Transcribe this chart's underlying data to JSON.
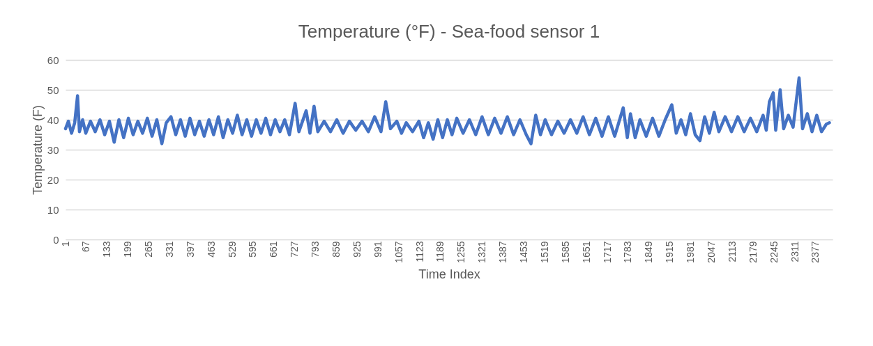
{
  "chart_data": {
    "type": "line",
    "title": "Temperature (°F) - Sea-food sensor 1",
    "xlabel": "Time Index",
    "ylabel": "Temperature (F)",
    "x": [
      1,
      10,
      20,
      30,
      39,
      45,
      55,
      65,
      80,
      95,
      110,
      125,
      140,
      155,
      170,
      185,
      200,
      215,
      230,
      245,
      260,
      275,
      290,
      306,
      320,
      335,
      350,
      365,
      380,
      395,
      410,
      425,
      440,
      455,
      470,
      485,
      500,
      515,
      530,
      545,
      560,
      575,
      590,
      605,
      620,
      635,
      650,
      665,
      680,
      695,
      710,
      728,
      740,
      763,
      775,
      788,
      800,
      820,
      840,
      860,
      880,
      900,
      920,
      940,
      960,
      980,
      1000,
      1015,
      1030,
      1050,
      1065,
      1080,
      1100,
      1120,
      1135,
      1150,
      1165,
      1180,
      1195,
      1210,
      1225,
      1240,
      1260,
      1280,
      1300,
      1320,
      1340,
      1360,
      1380,
      1400,
      1420,
      1440,
      1460,
      1475,
      1490,
      1505,
      1520,
      1540,
      1560,
      1580,
      1600,
      1620,
      1640,
      1660,
      1680,
      1700,
      1720,
      1740,
      1767,
      1780,
      1790,
      1805,
      1820,
      1840,
      1860,
      1880,
      1900,
      1921,
      1935,
      1950,
      1965,
      1980,
      1995,
      2010,
      2025,
      2040,
      2055,
      2070,
      2090,
      2110,
      2130,
      2150,
      2170,
      2190,
      2210,
      2220,
      2230,
      2242,
      2250,
      2264,
      2275,
      2290,
      2305,
      2324,
      2335,
      2350,
      2365,
      2380,
      2395,
      2410,
      2420
    ],
    "series": [
      {
        "color": "#4472c4",
        "values": [
          37,
          39.5,
          35.5,
          39,
          48,
          36,
          40,
          35.5,
          39.5,
          36,
          40,
          35,
          39.5,
          32.5,
          40,
          34,
          40.5,
          35,
          39.5,
          35.5,
          40.5,
          34.5,
          40,
          32,
          39,
          41,
          35,
          40,
          34.5,
          40.5,
          35,
          39.5,
          34.5,
          40,
          35,
          41,
          34,
          40,
          35.5,
          41.5,
          35,
          40,
          34.5,
          40,
          35.5,
          40.5,
          35,
          40,
          36,
          40,
          35,
          45.5,
          36,
          43,
          35.5,
          44.5,
          36,
          39.5,
          36,
          40,
          35.5,
          39.5,
          36.5,
          39.5,
          36,
          41,
          36,
          46,
          37,
          39.5,
          35.5,
          39,
          36,
          39.5,
          34,
          39,
          33.5,
          40,
          34,
          40,
          35,
          40.5,
          35.5,
          40,
          35,
          41,
          35,
          40.5,
          35.5,
          41,
          35,
          40,
          35,
          32,
          41.5,
          35,
          40,
          35,
          39.5,
          35.5,
          40,
          35.5,
          41,
          35,
          40.5,
          34.5,
          41,
          34.5,
          44,
          34,
          42,
          34,
          40,
          34.5,
          40.5,
          34.5,
          40,
          45,
          35.5,
          40,
          35,
          42,
          35,
          33,
          41,
          35.5,
          42.5,
          36,
          41,
          36,
          41,
          36,
          40.5,
          36,
          41.5,
          36.5,
          46,
          49,
          36.5,
          50,
          37,
          41.5,
          37.5,
          54,
          37,
          42,
          36,
          41.5,
          36,
          38.5,
          39
        ]
      }
    ],
    "xlim": [
      1,
      2430
    ],
    "xticks": [
      1,
      67,
      133,
      199,
      265,
      331,
      397,
      463,
      529,
      595,
      661,
      727,
      793,
      859,
      925,
      991,
      1057,
      1123,
      1189,
      1255,
      1321,
      1387,
      1453,
      1519,
      1585,
      1651,
      1717,
      1783,
      1849,
      1915,
      1981,
      2047,
      2113,
      2179,
      2245,
      2311,
      2377
    ],
    "ylim": [
      0,
      60
    ],
    "yticks": [
      0,
      10,
      20,
      30,
      40,
      50,
      60
    ],
    "grid": "y",
    "legend": false,
    "line_style": "solid"
  }
}
